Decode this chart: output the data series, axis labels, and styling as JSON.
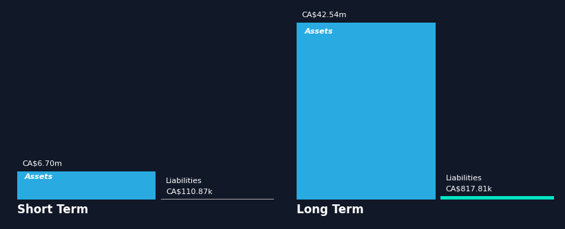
{
  "background_color": "#111827",
  "short_term": {
    "assets_value": 6.7,
    "assets_label": "CA$6.70m",
    "assets_color": "#29ABE2",
    "liabilities_value": 0.11087,
    "liabilities_label": "CA$110.87k",
    "liabilities_color": "#AAAAAA",
    "liabilities_text": "Liabilities",
    "assets_text": "Assets",
    "title": "Short Term"
  },
  "long_term": {
    "assets_value": 42.54,
    "assets_label": "CA$42.54m",
    "assets_color": "#29ABE2",
    "liabilities_value": 0.81781,
    "liabilities_label": "CA$817.81k",
    "liabilities_color": "#00E5C3",
    "liabilities_text": "Liabilities",
    "assets_text": "Assets",
    "title": "Long Term"
  },
  "max_value": 42.54,
  "text_color": "#FFFFFF",
  "title_fontsize": 12,
  "label_fontsize": 8,
  "value_fontsize": 8,
  "inner_label_fontsize": 8
}
